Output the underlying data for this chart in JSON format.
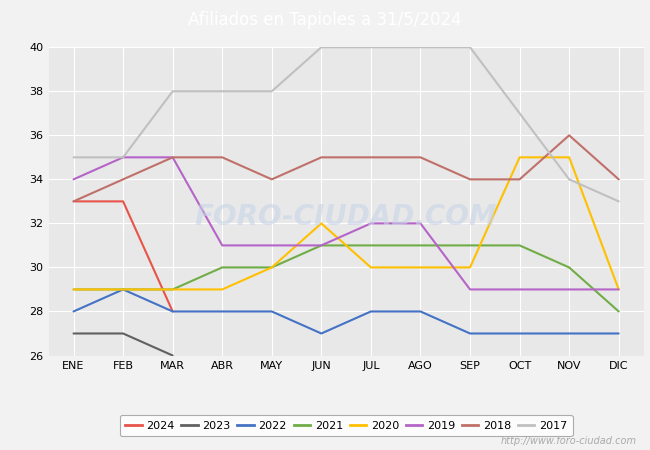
{
  "title": "Afiliados en Tapioles a 31/5/2024",
  "title_bg_color": "#4472c4",
  "title_text_color": "white",
  "months": [
    "ENE",
    "FEB",
    "MAR",
    "ABR",
    "MAY",
    "JUN",
    "JUL",
    "AGO",
    "SEP",
    "OCT",
    "NOV",
    "DIC"
  ],
  "ylim": [
    26,
    40
  ],
  "yticks": [
    26,
    28,
    30,
    32,
    34,
    36,
    38,
    40
  ],
  "series": {
    "2024": {
      "color": "#e8534a",
      "data": [
        33,
        33,
        28,
        null,
        null,
        null,
        null,
        null,
        null,
        null,
        null,
        null
      ]
    },
    "2023": {
      "color": "#606060",
      "data": [
        27,
        27,
        26,
        null,
        null,
        null,
        null,
        null,
        null,
        null,
        null,
        null
      ]
    },
    "2022": {
      "color": "#4472c4",
      "data": [
        28,
        29,
        28,
        28,
        28,
        27,
        28,
        28,
        27,
        27,
        27,
        27
      ]
    },
    "2021": {
      "color": "#70ad47",
      "data": [
        29,
        29,
        29,
        30,
        30,
        31,
        31,
        31,
        31,
        31,
        30,
        28
      ]
    },
    "2020": {
      "color": "#ffc000",
      "data": [
        29,
        29,
        29,
        29,
        30,
        32,
        30,
        30,
        30,
        35,
        35,
        29
      ]
    },
    "2019": {
      "color": "#b564c8",
      "data": [
        34,
        35,
        35,
        31,
        31,
        31,
        32,
        32,
        29,
        29,
        29,
        29
      ]
    },
    "2018": {
      "color": "#c0706a",
      "data": [
        33,
        34,
        35,
        35,
        34,
        35,
        35,
        35,
        34,
        34,
        36,
        34
      ]
    },
    "2017": {
      "color": "#c0c0c0",
      "data": [
        35,
        35,
        38,
        38,
        38,
        40,
        40,
        40,
        40,
        37,
        34,
        33
      ]
    }
  },
  "legend_order": [
    "2024",
    "2023",
    "2022",
    "2021",
    "2020",
    "2019",
    "2018",
    "2017"
  ],
  "watermark": "http://www.foro-ciudad.com",
  "bg_color": "#f2f2f2",
  "plot_bg_color": "#e8e8e8",
  "grid_color": "white"
}
